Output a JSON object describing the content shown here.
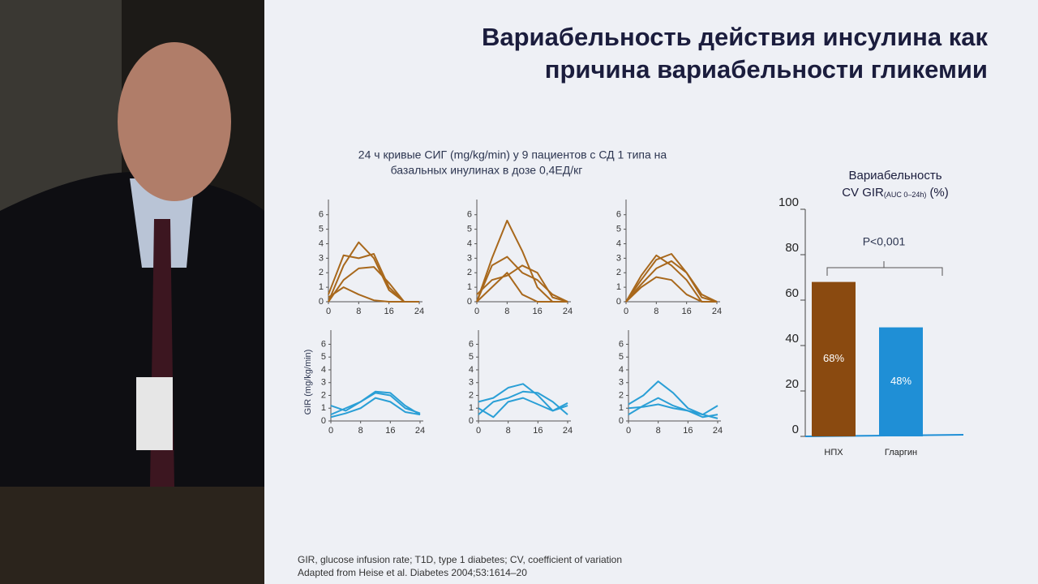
{
  "slide": {
    "title": [
      "Вариабельность действия инсулина как",
      "причина вариабельности гликемии"
    ],
    "caption": [
      "24 ч кривые СИГ (mg/kg/min) у 9 пациентов с СД 1 типа на",
      "базальных инулинах в дозе 0,4ЕД/кг"
    ],
    "footnotes": [
      "GIR, glucose infusion rate; T1D, type 1 diabetes; CV, coefficient of variation",
      "Adapted from Heise et al. Diabetes 2004;53:1614–20"
    ]
  },
  "chart_data": [
    {
      "type": "line",
      "x": [
        0,
        4,
        8,
        12,
        16,
        20,
        24
      ],
      "xlim": [
        0,
        24
      ],
      "ylim": [
        0,
        6.6
      ],
      "xticks": [
        0,
        8,
        16,
        24
      ],
      "yticks": [
        0,
        1,
        2,
        3,
        4,
        5,
        6
      ],
      "series": [
        {
          "color": "#a8681c",
          "values": [
            0,
            2.5,
            4.1,
            3,
            0.8,
            0,
            0
          ]
        },
        {
          "color": "#a8681c",
          "values": [
            0.5,
            3.2,
            3,
            3.3,
            1,
            0,
            0
          ]
        },
        {
          "color": "#a8681c",
          "values": [
            0,
            1.5,
            2.3,
            2.4,
            1.3,
            0,
            0
          ]
        },
        {
          "color": "#a8681c",
          "values": [
            0.3,
            1,
            0.5,
            0.1,
            0,
            0,
            0
          ]
        }
      ]
    },
    {
      "type": "line",
      "x": [
        0,
        4,
        8,
        12,
        16,
        20,
        24
      ],
      "xlim": [
        0,
        24
      ],
      "ylim": [
        0,
        6.6
      ],
      "xticks": [
        0,
        8,
        16,
        24
      ],
      "yticks": [
        0,
        1,
        2,
        3,
        4,
        5,
        6
      ],
      "series": [
        {
          "color": "#a8681c",
          "values": [
            0,
            3,
            5.6,
            3.5,
            1,
            0,
            0
          ]
        },
        {
          "color": "#a8681c",
          "values": [
            0,
            2.5,
            3.1,
            2,
            1.5,
            0.5,
            0
          ]
        },
        {
          "color": "#a8681c",
          "values": [
            0.5,
            1.5,
            1.8,
            2.5,
            2,
            0.3,
            0
          ]
        },
        {
          "color": "#a8681c",
          "values": [
            0,
            1,
            2,
            0.5,
            0,
            0,
            0
          ]
        }
      ]
    },
    {
      "type": "line",
      "x": [
        0,
        4,
        8,
        12,
        16,
        20,
        24
      ],
      "xlim": [
        0,
        24
      ],
      "ylim": [
        0,
        6.6
      ],
      "xticks": [
        0,
        8,
        16,
        24
      ],
      "yticks": [
        0,
        1,
        2,
        3,
        4,
        5,
        6
      ],
      "series": [
        {
          "color": "#a8681c",
          "values": [
            0,
            1.5,
            2.9,
            3.3,
            2,
            0.3,
            0
          ]
        },
        {
          "color": "#a8681c",
          "values": [
            0,
            1.8,
            3.2,
            2.5,
            1.5,
            0,
            0
          ]
        },
        {
          "color": "#a8681c",
          "values": [
            0,
            1.2,
            2.3,
            2.8,
            2,
            0.5,
            0
          ]
        },
        {
          "color": "#a8681c",
          "values": [
            0,
            1,
            1.7,
            1.5,
            0.5,
            0,
            0
          ]
        }
      ]
    },
    {
      "type": "line",
      "ylabel": "GIR (mg/kg/min)",
      "x": [
        0,
        4,
        8,
        12,
        16,
        20,
        24
      ],
      "xlim": [
        0,
        24
      ],
      "ylim": [
        0,
        6.6
      ],
      "xticks": [
        0,
        8,
        16,
        24
      ],
      "yticks": [
        0,
        1,
        2,
        3,
        4,
        5,
        6
      ],
      "series": [
        {
          "color": "#2a9fd6",
          "values": [
            1.2,
            0.8,
            1.5,
            2.2,
            2,
            1,
            0.6
          ]
        },
        {
          "color": "#2a9fd6",
          "values": [
            0.5,
            1,
            1.5,
            2.3,
            2.2,
            1.2,
            0.5
          ]
        },
        {
          "color": "#2a9fd6",
          "values": [
            0.3,
            0.6,
            1,
            1.8,
            1.5,
            0.7,
            0.5
          ]
        }
      ]
    },
    {
      "type": "line",
      "x": [
        0,
        4,
        8,
        12,
        16,
        20,
        24
      ],
      "xlim": [
        0,
        24
      ],
      "ylim": [
        0,
        6.6
      ],
      "xticks": [
        0,
        8,
        16,
        24
      ],
      "yticks": [
        0,
        1,
        2,
        3,
        4,
        5,
        6
      ],
      "series": [
        {
          "color": "#2a9fd6",
          "values": [
            1.5,
            1.8,
            2.6,
            2.9,
            2,
            0.8,
            1.2
          ]
        },
        {
          "color": "#2a9fd6",
          "values": [
            0.5,
            1.5,
            1.8,
            2.3,
            2.2,
            1.5,
            0.5
          ]
        },
        {
          "color": "#2a9fd6",
          "values": [
            1,
            0.3,
            1.5,
            1.8,
            1.3,
            0.8,
            1.4
          ]
        }
      ]
    },
    {
      "type": "line",
      "x": [
        0,
        4,
        8,
        12,
        16,
        20,
        24
      ],
      "xlim": [
        0,
        24
      ],
      "ylim": [
        0,
        6.6
      ],
      "xticks": [
        0,
        8,
        16,
        24
      ],
      "yticks": [
        0,
        1,
        2,
        3,
        4,
        5,
        6
      ],
      "series": [
        {
          "color": "#2a9fd6",
          "values": [
            1.3,
            2,
            3.1,
            2.2,
            1,
            0.5,
            1.2
          ]
        },
        {
          "color": "#2a9fd6",
          "values": [
            0.5,
            1.2,
            1.8,
            1.2,
            0.8,
            0.5,
            0.2
          ]
        },
        {
          "color": "#2a9fd6",
          "values": [
            1,
            1.1,
            1.3,
            1,
            0.8,
            0.3,
            0.5
          ]
        }
      ]
    },
    {
      "type": "bar",
      "title": "Вариабельность",
      "subtitle": "CV GIR",
      "subtitle_sub": "(AUC 0–24h)",
      "subtitle_unit": "(%)",
      "categories": [
        "НПХ",
        "Гларгин"
      ],
      "values": [
        68,
        48
      ],
      "value_labels": [
        "68%",
        "48%"
      ],
      "colors": [
        "#8a4a10",
        "#1f8fd6"
      ],
      "ylim": [
        0,
        100
      ],
      "yticks": [
        0,
        20,
        40,
        60,
        80,
        100
      ],
      "annotation": "P<0,001"
    }
  ]
}
